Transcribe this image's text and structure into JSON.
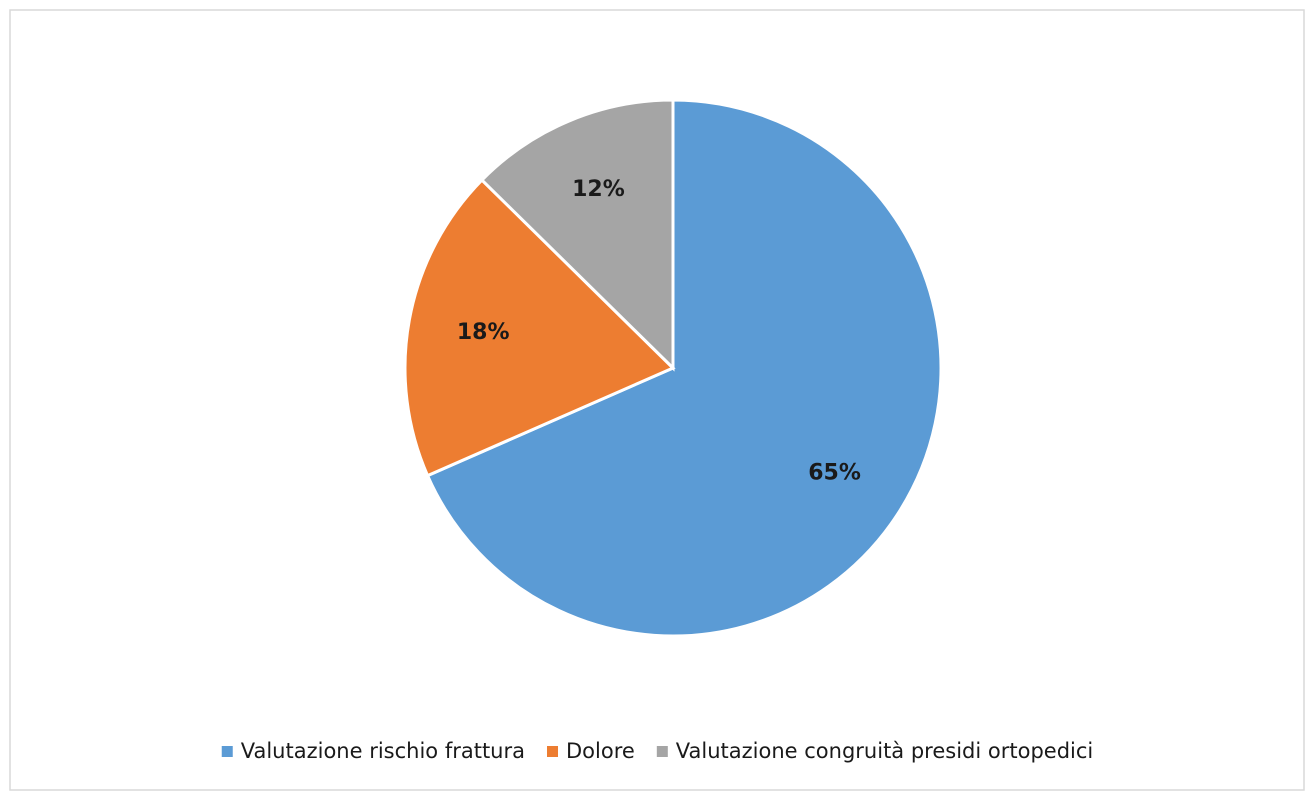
{
  "chart_data": {
    "type": "pie",
    "categories": [
      "Valutazione rischio frattura",
      "Dolore",
      "Valutazione congruità presidi ortopedici"
    ],
    "values": [
      65,
      18,
      12
    ],
    "value_labels": [
      "65%",
      "18%",
      "12%"
    ],
    "colors": [
      "#5b9bd5",
      "#ed7d31",
      "#a5a5a5"
    ],
    "legend": "bottom"
  }
}
